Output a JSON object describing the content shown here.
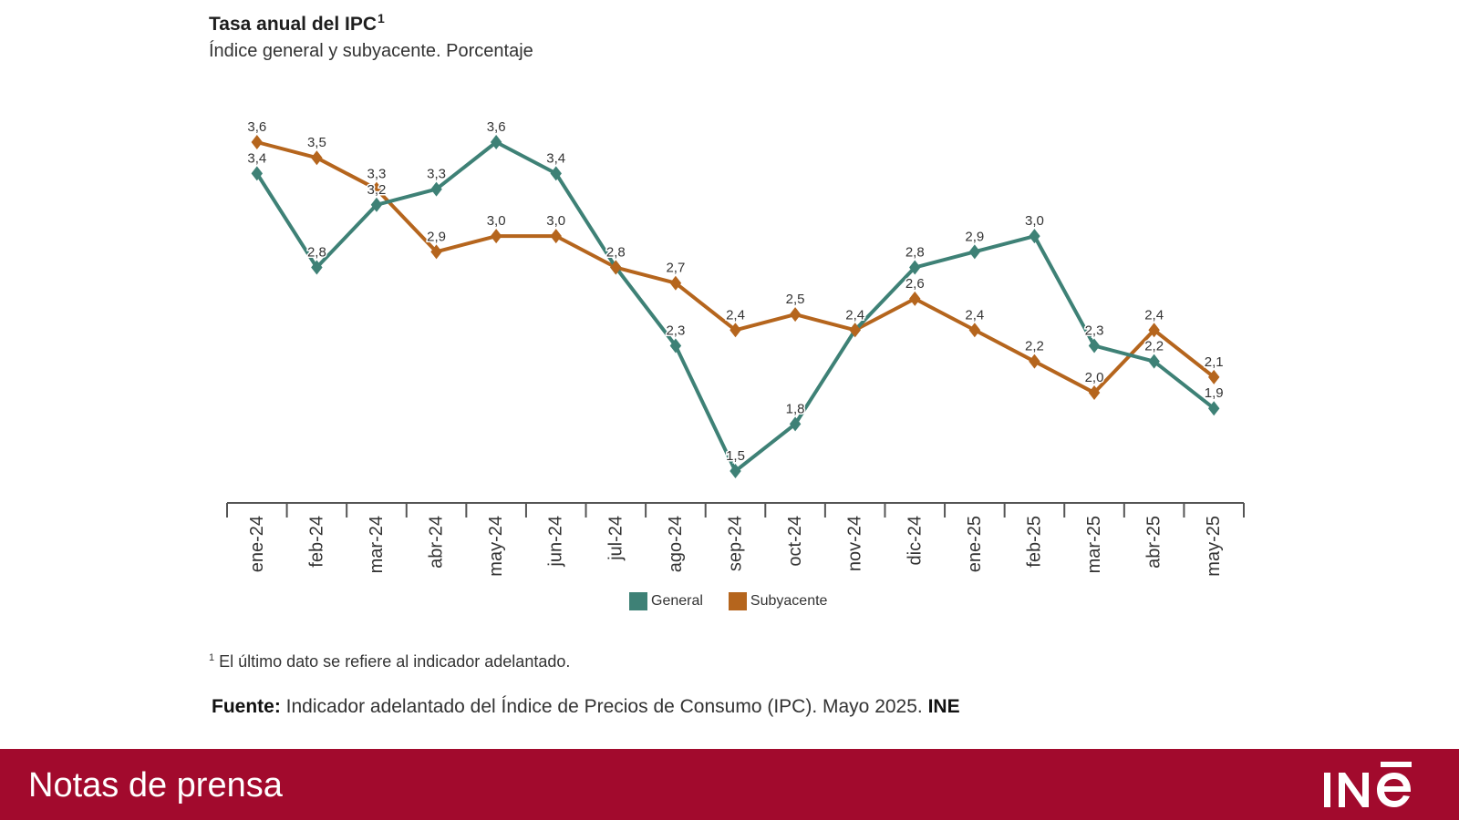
{
  "header": {
    "title": "Tasa anual del IPC",
    "title_sup": "1",
    "subtitle": "Índice general y subyacente. Porcentaje"
  },
  "chart_data": {
    "type": "line",
    "categories": [
      "ene-24",
      "feb-24",
      "mar-24",
      "abr-24",
      "may-24",
      "jun-24",
      "jul-24",
      "ago-24",
      "sep-24",
      "oct-24",
      "nov-24",
      "dic-24",
      "ene-25",
      "feb-25",
      "mar-25",
      "abr-25",
      "may-25"
    ],
    "series": [
      {
        "name": "General",
        "color": "#3e8176",
        "values": [
          3.4,
          2.8,
          3.2,
          3.3,
          3.6,
          3.4,
          2.8,
          2.3,
          1.5,
          1.8,
          2.4,
          2.8,
          2.9,
          3.0,
          2.3,
          2.2,
          1.9
        ],
        "labels": [
          "3,4",
          "2,8",
          "3,2",
          "3,3",
          "3,6",
          "3,4",
          "2,8",
          "2,3",
          "1,5",
          "1,8",
          "2,4",
          "2,8",
          "2,9",
          "3,0",
          "2,3",
          "2,2",
          "1,9"
        ]
      },
      {
        "name": "Subyacente",
        "color": "#b5651d",
        "values": [
          3.6,
          3.5,
          3.3,
          2.9,
          3.0,
          3.0,
          2.8,
          2.7,
          2.4,
          2.5,
          2.4,
          2.6,
          2.4,
          2.2,
          2.0,
          2.4,
          2.1
        ],
        "labels": [
          "3,6",
          "3,5",
          "3,3",
          "2,9",
          "3,0",
          "3,0",
          "2,8",
          "2,7",
          "2,4",
          "2,5",
          "2,4",
          "2,6",
          "2,4",
          "2,2",
          "2,0",
          "2,4",
          "2,1"
        ]
      }
    ],
    "ylim": [
      1.2,
      3.9
    ],
    "grid": false,
    "legend_position": "bottom-center"
  },
  "legend": {
    "general": "General",
    "subyacente": "Subyacente"
  },
  "footnote": {
    "sup": "1",
    "text": "El último dato se refiere al indicador adelantado."
  },
  "source": {
    "label": "Fuente:",
    "text": "Indicador adelantado del Índice de Precios de Consumo (IPC).  Mayo 2025.",
    "org": "INE"
  },
  "banner": {
    "text": "Notas de prensa",
    "logo": "INE"
  },
  "colors": {
    "general": "#3e8176",
    "subyacente": "#b5651d",
    "banner": "#a20a2d"
  }
}
